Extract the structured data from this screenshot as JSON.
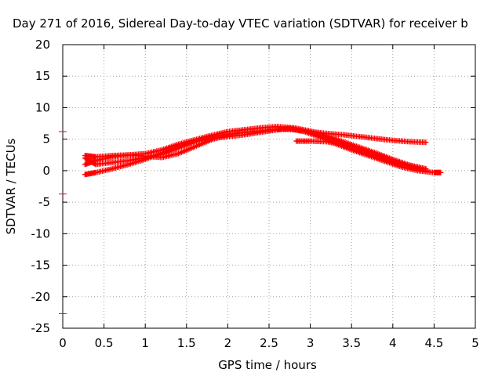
{
  "chart_data": {
    "type": "scatter",
    "title": "Day 271 of 2016, Sidereal Day-to-day VTEC variation (SDTVAR) for receiver b",
    "xlabel": "GPS time / hours",
    "ylabel": "SDTVAR / TECUs",
    "xlim": [
      0,
      5
    ],
    "ylim": [
      -25,
      20
    ],
    "xticks": [
      "0",
      "0.5",
      "1",
      "1.5",
      "2",
      "2.5",
      "3",
      "3.5",
      "4",
      "4.5",
      "5"
    ],
    "yticks": [
      "20",
      "15",
      "10",
      "5",
      "0",
      "-5",
      "-10",
      "-15",
      "-20",
      "-25"
    ],
    "grid": true,
    "marker": "cross",
    "color": "#ff0000",
    "left_axis_marks": [
      6.2,
      -3.7,
      -22.7
    ],
    "series": [
      {
        "x": [
          0.27,
          0.4,
          0.6,
          0.8,
          1.0,
          1.2,
          1.4,
          1.6,
          1.8,
          2.0,
          2.2,
          2.4,
          2.6,
          2.75,
          2.9,
          3.1,
          3.3,
          3.5,
          3.7,
          3.9,
          4.1,
          4.3,
          4.5,
          4.58
        ],
        "y": [
          -0.6,
          -0.3,
          0.3,
          1.0,
          1.8,
          2.8,
          3.8,
          4.6,
          5.1,
          5.4,
          5.7,
          6.1,
          6.5,
          6.7,
          6.3,
          5.4,
          4.3,
          3.3,
          2.4,
          1.5,
          0.6,
          0.0,
          -0.3,
          -0.3
        ]
      },
      {
        "x": [
          0.27,
          0.4,
          0.6,
          0.8,
          1.0,
          1.2,
          1.4,
          1.6,
          1.8,
          2.0,
          2.2,
          2.4,
          2.6,
          2.8,
          3.0,
          3.2,
          3.4,
          3.6,
          3.8,
          4.0,
          4.2,
          4.4
        ],
        "y": [
          1.0,
          1.6,
          2.2,
          2.5,
          2.7,
          3.3,
          4.2,
          4.9,
          5.6,
          6.2,
          6.5,
          6.8,
          7.0,
          6.8,
          6.3,
          5.5,
          4.6,
          3.7,
          2.8,
          1.8,
          0.9,
          0.3
        ]
      },
      {
        "x": [
          0.27,
          0.4,
          0.6,
          0.8,
          1.0,
          1.2,
          1.4,
          1.6,
          1.8,
          2.0,
          2.2,
          2.4,
          2.6,
          2.8,
          3.0,
          3.2,
          3.4,
          3.6,
          3.8,
          4.0,
          4.2,
          4.4
        ],
        "y": [
          2.0,
          1.0,
          1.3,
          1.6,
          2.1,
          2.6,
          3.6,
          4.6,
          5.3,
          5.8,
          6.1,
          6.3,
          6.6,
          6.5,
          6.1,
          5.3,
          4.3,
          3.3,
          2.3,
          1.4,
          0.6,
          0.0
        ]
      },
      {
        "x": [
          0.27,
          0.4,
          0.6,
          0.8,
          1.0,
          1.2,
          1.4,
          1.6,
          1.8,
          2.0,
          2.2,
          2.4,
          2.6,
          2.8,
          3.0,
          3.2,
          3.4,
          3.6,
          3.8,
          4.0,
          4.2,
          4.4
        ],
        "y": [
          2.4,
          2.2,
          2.4,
          2.5,
          2.3,
          2.1,
          2.7,
          3.8,
          4.9,
          5.7,
          6.1,
          6.3,
          6.6,
          6.7,
          6.2,
          5.9,
          5.7,
          5.4,
          5.1,
          4.8,
          4.6,
          4.5
        ]
      },
      {
        "x": [
          2.83,
          3.0,
          3.2,
          3.4,
          3.6,
          3.8,
          4.0,
          4.2,
          4.4
        ],
        "y": [
          4.7,
          4.7,
          4.6,
          4.1,
          3.3,
          2.4,
          1.5,
          0.8,
          0.3
        ]
      }
    ]
  }
}
